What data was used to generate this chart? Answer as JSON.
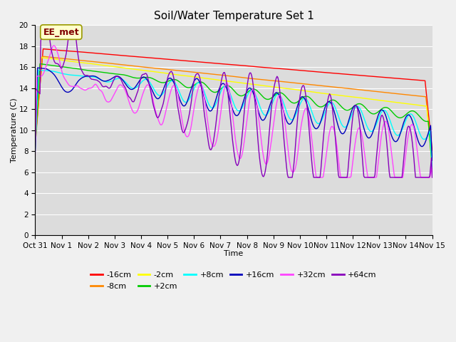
{
  "title": "Soil/Water Temperature Set 1",
  "xlabel": "Time",
  "ylabel": "Temperature (C)",
  "ylim": [
    0,
    20
  ],
  "yticks": [
    0,
    2,
    4,
    6,
    8,
    10,
    12,
    14,
    16,
    18,
    20
  ],
  "x_labels": [
    "Oct 31",
    "Nov 1",
    "Nov 2",
    "Nov 3",
    "Nov 4",
    "Nov 5",
    "Nov 6",
    "Nov 7",
    "Nov 8",
    "Nov 9",
    "Nov 10",
    "Nov 11",
    "Nov 12",
    "Nov 13",
    "Nov 14",
    "Nov 15"
  ],
  "annotation": "EE_met",
  "plot_bg": "#dcdcdc",
  "fig_bg": "#f0f0f0",
  "grid_color": "#ffffff",
  "series_order": [
    "-16cm",
    "-8cm",
    "-2cm",
    "+2cm",
    "+8cm",
    "+16cm",
    "+32cm",
    "+64cm"
  ],
  "series_colors": {
    "-16cm": "#ff0000",
    "-8cm": "#ff8800",
    "-2cm": "#ffff00",
    "+2cm": "#00cc00",
    "+8cm": "#00ffff",
    "+16cm": "#0000bb",
    "+32cm": "#ff44ff",
    "+64cm": "#8800bb"
  },
  "lw": 1.0,
  "title_fontsize": 11,
  "axis_fontsize": 8,
  "tick_fontsize": 7.5,
  "legend_fontsize": 8
}
